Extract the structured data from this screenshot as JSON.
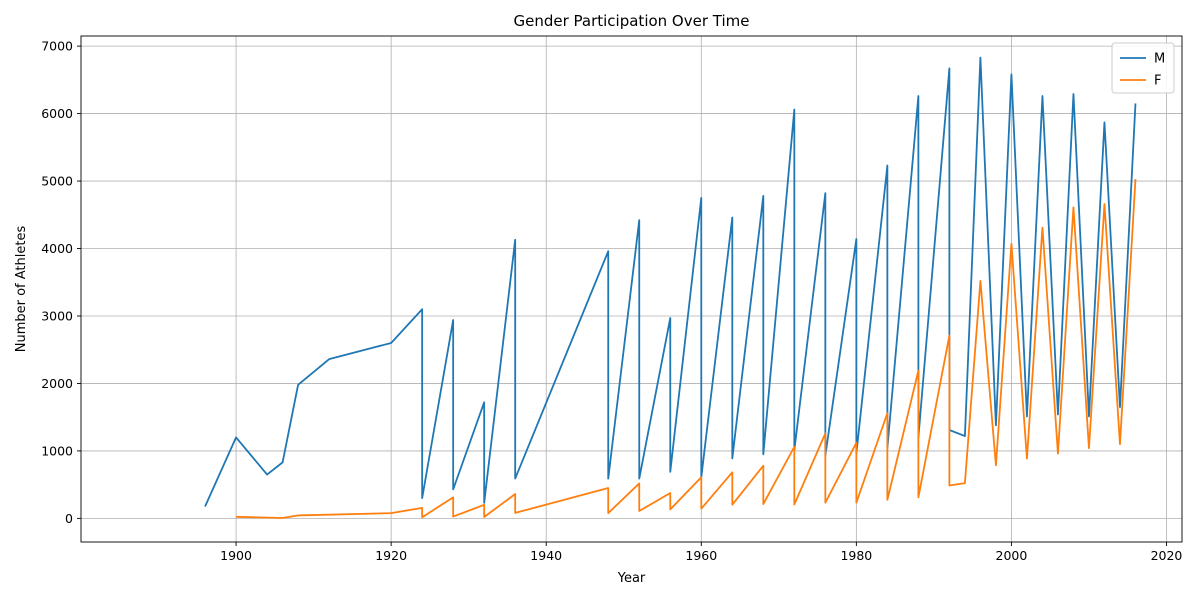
{
  "chart_data": {
    "type": "line",
    "title": "Gender Participation Over Time",
    "xlabel": "Year",
    "ylabel": "Number of Athletes",
    "xlim": [
      1880,
      2022
    ],
    "ylim": [
      -350,
      7150
    ],
    "xticks": [
      1900,
      1920,
      1940,
      1960,
      1980,
      2000,
      2020
    ],
    "yticks": [
      0,
      1000,
      2000,
      3000,
      4000,
      5000,
      6000,
      7000
    ],
    "grid": true,
    "legend_position": "top-right",
    "series": [
      {
        "name": "M",
        "color": "#1f77b4",
        "points": [
          [
            1896,
            176
          ],
          [
            1900,
            1200
          ],
          [
            1904,
            650
          ],
          [
            1906,
            830
          ],
          [
            1908,
            1980
          ],
          [
            1912,
            2360
          ],
          [
            1920,
            2600
          ],
          [
            1924,
            3100
          ],
          [
            1924,
            300
          ],
          [
            1928,
            2940
          ],
          [
            1928,
            430
          ],
          [
            1932,
            1720
          ],
          [
            1932,
            230
          ],
          [
            1936,
            4130
          ],
          [
            1936,
            590
          ],
          [
            1948,
            3960
          ],
          [
            1948,
            590
          ],
          [
            1952,
            4420
          ],
          [
            1952,
            590
          ],
          [
            1956,
            2970
          ],
          [
            1956,
            690
          ],
          [
            1960,
            4750
          ],
          [
            1960,
            610
          ],
          [
            1964,
            4460
          ],
          [
            1964,
            890
          ],
          [
            1968,
            4780
          ],
          [
            1968,
            950
          ],
          [
            1972,
            6060
          ],
          [
            1972,
            1010
          ],
          [
            1976,
            4820
          ],
          [
            1976,
            930
          ],
          [
            1980,
            4140
          ],
          [
            1980,
            960
          ],
          [
            1984,
            5230
          ],
          [
            1984,
            1040
          ],
          [
            1988,
            6260
          ],
          [
            1988,
            1200
          ],
          [
            1992,
            6670
          ],
          [
            1992,
            1310
          ],
          [
            1994,
            1220
          ],
          [
            1996,
            6830
          ],
          [
            1998,
            1380
          ],
          [
            2000,
            6580
          ],
          [
            2002,
            1510
          ],
          [
            2004,
            6260
          ],
          [
            2006,
            1540
          ],
          [
            2008,
            6290
          ],
          [
            2010,
            1510
          ],
          [
            2012,
            5870
          ],
          [
            2014,
            1650
          ],
          [
            2016,
            6150
          ]
        ]
      },
      {
        "name": "F",
        "color": "#ff7f0e",
        "points": [
          [
            1900,
            23
          ],
          [
            1906,
            6
          ],
          [
            1908,
            44
          ],
          [
            1920,
            78
          ],
          [
            1924,
            156
          ],
          [
            1924,
            17
          ],
          [
            1928,
            312
          ],
          [
            1928,
            27
          ],
          [
            1932,
            201
          ],
          [
            1932,
            21
          ],
          [
            1936,
            361
          ],
          [
            1936,
            81
          ],
          [
            1948,
            450
          ],
          [
            1948,
            78
          ],
          [
            1952,
            518
          ],
          [
            1952,
            109
          ],
          [
            1956,
            376
          ],
          [
            1956,
            133
          ],
          [
            1960,
            610
          ],
          [
            1960,
            144
          ],
          [
            1964,
            683
          ],
          [
            1964,
            203
          ],
          [
            1968,
            781
          ],
          [
            1968,
            212
          ],
          [
            1972,
            1060
          ],
          [
            1972,
            206
          ],
          [
            1976,
            1260
          ],
          [
            1976,
            232
          ],
          [
            1980,
            1120
          ],
          [
            1980,
            233
          ],
          [
            1984,
            1560
          ],
          [
            1984,
            275
          ],
          [
            1988,
            2190
          ],
          [
            1988,
            313
          ],
          [
            1992,
            2710
          ],
          [
            1992,
            488
          ],
          [
            1994,
            522
          ],
          [
            1996,
            3520
          ],
          [
            1998,
            788
          ],
          [
            2000,
            4070
          ],
          [
            2002,
            886
          ],
          [
            2004,
            4310
          ],
          [
            2006,
            960
          ],
          [
            2008,
            4610
          ],
          [
            2010,
            1040
          ],
          [
            2012,
            4660
          ],
          [
            2014,
            1100
          ],
          [
            2016,
            5030
          ]
        ]
      }
    ]
  }
}
